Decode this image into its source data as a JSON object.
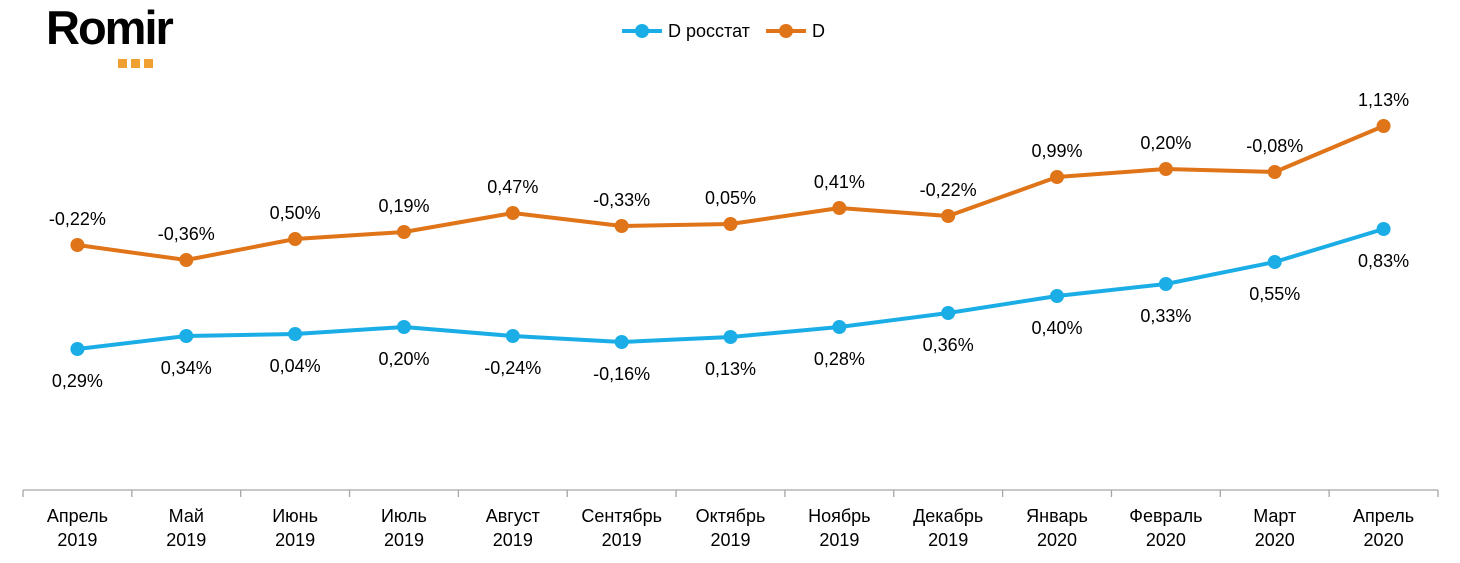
{
  "brand": {
    "name": "Romir",
    "dot_color": "#F0A030"
  },
  "chart_data": {
    "type": "line",
    "categories": [
      [
        "Апрель",
        "2019"
      ],
      [
        "Май",
        "2019"
      ],
      [
        "Июнь",
        "2019"
      ],
      [
        "Июль",
        "2019"
      ],
      [
        "Август",
        "2019"
      ],
      [
        "Сентябрь",
        "2019"
      ],
      [
        "Октябрь",
        "2019"
      ],
      [
        "Ноябрь",
        "2019"
      ],
      [
        "Декабрь",
        "2019"
      ],
      [
        "Январь",
        "2020"
      ],
      [
        "Февраль",
        "2020"
      ],
      [
        "Март",
        "2020"
      ],
      [
        "Апрель",
        "2020"
      ]
    ],
    "series": [
      {
        "name": "D росстат",
        "color": "#1BAEE6",
        "labels": [
          "0,29%",
          "0,34%",
          "0,04%",
          "0,20%",
          "-0,24%",
          "-0,16%",
          "0,13%",
          "0,28%",
          "0,36%",
          "0,40%",
          "0,33%",
          "0,55%",
          "0,83%"
        ]
      },
      {
        "name": "D",
        "color": "#E07418",
        "labels": [
          "-0,22%",
          "-0,36%",
          "0,50%",
          "0,19%",
          "0,47%",
          "-0,33%",
          "0,05%",
          "0,41%",
          "-0,22%",
          "0,99%",
          "0,20%",
          "-0,08%",
          "1,13%"
        ]
      }
    ],
    "legend_position": "top-center",
    "grid": false
  }
}
